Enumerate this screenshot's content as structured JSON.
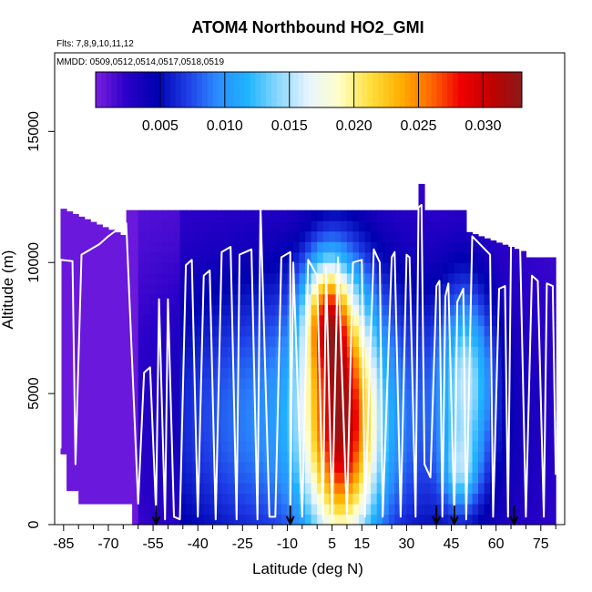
{
  "chart_data": {
    "type": "heatmap",
    "title": "ATOM4 Northbound HO2_GMI",
    "flights_note": "Flts: 7,8,9,10,11,12",
    "dates_note": "MMDD: 0509,0512,0514,0517,0518,0519",
    "xlabel": "Latitude (deg N)",
    "ylabel": "Altitude (m)",
    "xlim": [
      -88,
      83
    ],
    "ylim": [
      0,
      18000
    ],
    "x_ticks": [
      -85,
      -70,
      -55,
      -40,
      -25,
      -10,
      5,
      15,
      30,
      45,
      60,
      75
    ],
    "x_tick_labels": [
      "-85",
      "-70",
      "-55",
      "-40",
      "-25",
      "-10",
      "5",
      "15",
      "30",
      "45",
      "60",
      "75"
    ],
    "y_ticks": [
      0,
      5000,
      10000,
      15000
    ],
    "y_tick_labels": [
      "0",
      "5000",
      "10000",
      "15000"
    ],
    "colorbar": {
      "min": 0.0,
      "max": 0.033,
      "ticks": [
        0.005,
        0.01,
        0.015,
        0.02,
        0.025,
        0.03
      ],
      "tick_labels": [
        "0.005",
        "0.010",
        "0.015",
        "0.020",
        "0.025",
        "0.030"
      ],
      "colors": [
        "#7B1FE0",
        "#2A00C8",
        "#0000B0",
        "#1E3CE6",
        "#2C8CFF",
        "#1EB4FF",
        "#8CD8FF",
        "#E8F4FF",
        "#FFFFC8",
        "#FFE040",
        "#FFB000",
        "#FF6A00",
        "#F00000",
        "#C00000",
        "#8B1A1A"
      ]
    },
    "arrow_latitudes": [
      -54,
      -9,
      40,
      46,
      66
    ],
    "flight_track": [
      [
        -86,
        2900
      ],
      [
        -86,
        10100
      ],
      [
        -82,
        10050
      ],
      [
        -81,
        2300
      ],
      [
        -79,
        10300
      ],
      [
        -73,
        10700
      ],
      [
        -70,
        11000
      ],
      [
        -64,
        11500
      ],
      [
        -60,
        800
      ],
      [
        -58,
        5800
      ],
      [
        -56,
        6000
      ],
      [
        -54,
        500
      ],
      [
        -53,
        8600
      ],
      [
        -51,
        200
      ],
      [
        -50,
        8600
      ],
      [
        -48,
        300
      ],
      [
        -46,
        200
      ],
      [
        -44,
        9900
      ],
      [
        -42,
        10100
      ],
      [
        -40,
        300
      ],
      [
        -38,
        9500
      ],
      [
        -36,
        9700
      ],
      [
        -34,
        200
      ],
      [
        -32,
        10400
      ],
      [
        -29,
        10600
      ],
      [
        -27,
        200
      ],
      [
        -26,
        10300
      ],
      [
        -22,
        10500
      ],
      [
        -20,
        200
      ],
      [
        -19,
        12200
      ],
      [
        -16,
        300
      ],
      [
        -14,
        300
      ],
      [
        -12,
        10200
      ],
      [
        -9,
        10400
      ],
      [
        -9,
        300
      ],
      [
        -8,
        10000
      ],
      [
        -5,
        300
      ],
      [
        -3,
        10100
      ],
      [
        0,
        9500
      ],
      [
        2,
        200
      ],
      [
        3,
        9800
      ],
      [
        5,
        300
      ],
      [
        7,
        10200
      ],
      [
        10,
        300
      ],
      [
        12,
        10000
      ],
      [
        15,
        10100
      ],
      [
        16,
        300
      ],
      [
        19,
        10500
      ],
      [
        21,
        10000
      ],
      [
        22,
        300
      ],
      [
        25,
        10200
      ],
      [
        26,
        10400
      ],
      [
        28,
        300
      ],
      [
        30,
        10300
      ],
      [
        31,
        10200
      ],
      [
        33,
        300
      ],
      [
        34,
        12100
      ],
      [
        35,
        12200
      ],
      [
        36,
        2300
      ],
      [
        38,
        1800
      ],
      [
        40,
        9100
      ],
      [
        41,
        9300
      ],
      [
        42,
        300
      ],
      [
        43,
        8700
      ],
      [
        44,
        9200
      ],
      [
        46,
        300
      ],
      [
        47,
        8500
      ],
      [
        49,
        9000
      ],
      [
        50,
        200
      ],
      [
        52,
        11000
      ],
      [
        58,
        10300
      ],
      [
        59,
        300
      ],
      [
        61,
        9000
      ],
      [
        63,
        9100
      ],
      [
        64,
        300
      ],
      [
        65,
        10700
      ],
      [
        68,
        10900
      ],
      [
        70,
        300
      ],
      [
        72,
        9500
      ],
      [
        74,
        9300
      ],
      [
        76,
        300
      ],
      [
        77,
        9200
      ],
      [
        79,
        9100
      ],
      [
        80,
        1900
      ]
    ]
  }
}
